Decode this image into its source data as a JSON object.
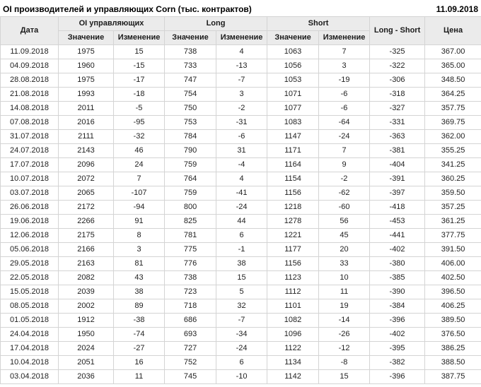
{
  "header": {
    "title": "OI производителей и управляющих Corn (тыс. контрактов)",
    "date": "11.09.2018"
  },
  "table": {
    "col_date": "Дата",
    "group_oi": "OI управляющих",
    "group_long": "Long",
    "group_short": "Short",
    "col_value": "Значение",
    "col_change": "Изменение",
    "col_long_short": "Long - Short",
    "col_price": "Цена",
    "rows": [
      {
        "date": "11.09.2018",
        "oi": 1975,
        "oi_chg": 15,
        "long": 738,
        "long_chg": 4,
        "short": 1063,
        "short_chg": 7,
        "ls": -325,
        "price": "367.00"
      },
      {
        "date": "04.09.2018",
        "oi": 1960,
        "oi_chg": -15,
        "long": 733,
        "long_chg": -13,
        "short": 1056,
        "short_chg": 3,
        "ls": -322,
        "price": "365.00"
      },
      {
        "date": "28.08.2018",
        "oi": 1975,
        "oi_chg": -17,
        "long": 747,
        "long_chg": -7,
        "short": 1053,
        "short_chg": -19,
        "ls": -306,
        "price": "348.50"
      },
      {
        "date": "21.08.2018",
        "oi": 1993,
        "oi_chg": -18,
        "long": 754,
        "long_chg": 3,
        "short": 1071,
        "short_chg": -6,
        "ls": -318,
        "price": "364.25"
      },
      {
        "date": "14.08.2018",
        "oi": 2011,
        "oi_chg": -5,
        "long": 750,
        "long_chg": -2,
        "short": 1077,
        "short_chg": -6,
        "ls": -327,
        "price": "357.75"
      },
      {
        "date": "07.08.2018",
        "oi": 2016,
        "oi_chg": -95,
        "long": 753,
        "long_chg": -31,
        "short": 1083,
        "short_chg": -64,
        "ls": -331,
        "price": "369.75"
      },
      {
        "date": "31.07.2018",
        "oi": 2111,
        "oi_chg": -32,
        "long": 784,
        "long_chg": -6,
        "short": 1147,
        "short_chg": -24,
        "ls": -363,
        "price": "362.00"
      },
      {
        "date": "24.07.2018",
        "oi": 2143,
        "oi_chg": 46,
        "long": 790,
        "long_chg": 31,
        "short": 1171,
        "short_chg": 7,
        "ls": -381,
        "price": "355.25"
      },
      {
        "date": "17.07.2018",
        "oi": 2096,
        "oi_chg": 24,
        "long": 759,
        "long_chg": -4,
        "short": 1164,
        "short_chg": 9,
        "ls": -404,
        "price": "341.25"
      },
      {
        "date": "10.07.2018",
        "oi": 2072,
        "oi_chg": 7,
        "long": 764,
        "long_chg": 4,
        "short": 1154,
        "short_chg": -2,
        "ls": -391,
        "price": "360.25"
      },
      {
        "date": "03.07.2018",
        "oi": 2065,
        "oi_chg": -107,
        "long": 759,
        "long_chg": -41,
        "short": 1156,
        "short_chg": -62,
        "ls": -397,
        "price": "359.50"
      },
      {
        "date": "26.06.2018",
        "oi": 2172,
        "oi_chg": -94,
        "long": 800,
        "long_chg": -24,
        "short": 1218,
        "short_chg": -60,
        "ls": -418,
        "price": "357.25"
      },
      {
        "date": "19.06.2018",
        "oi": 2266,
        "oi_chg": 91,
        "long": 825,
        "long_chg": 44,
        "short": 1278,
        "short_chg": 56,
        "ls": -453,
        "price": "361.25"
      },
      {
        "date": "12.06.2018",
        "oi": 2175,
        "oi_chg": 8,
        "long": 781,
        "long_chg": 6,
        "short": 1221,
        "short_chg": 45,
        "ls": -441,
        "price": "377.75"
      },
      {
        "date": "05.06.2018",
        "oi": 2166,
        "oi_chg": 3,
        "long": 775,
        "long_chg": -1,
        "short": 1177,
        "short_chg": 20,
        "ls": -402,
        "price": "391.50"
      },
      {
        "date": "29.05.2018",
        "oi": 2163,
        "oi_chg": 81,
        "long": 776,
        "long_chg": 38,
        "short": 1156,
        "short_chg": 33,
        "ls": -380,
        "price": "406.00"
      },
      {
        "date": "22.05.2018",
        "oi": 2082,
        "oi_chg": 43,
        "long": 738,
        "long_chg": 15,
        "short": 1123,
        "short_chg": 10,
        "ls": -385,
        "price": "402.50"
      },
      {
        "date": "15.05.2018",
        "oi": 2039,
        "oi_chg": 38,
        "long": 723,
        "long_chg": 5,
        "short": 1112,
        "short_chg": 11,
        "ls": -390,
        "price": "396.50"
      },
      {
        "date": "08.05.2018",
        "oi": 2002,
        "oi_chg": 89,
        "long": 718,
        "long_chg": 32,
        "short": 1101,
        "short_chg": 19,
        "ls": -384,
        "price": "406.25"
      },
      {
        "date": "01.05.2018",
        "oi": 1912,
        "oi_chg": -38,
        "long": 686,
        "long_chg": -7,
        "short": 1082,
        "short_chg": -14,
        "ls": -396,
        "price": "389.50"
      },
      {
        "date": "24.04.2018",
        "oi": 1950,
        "oi_chg": -74,
        "long": 693,
        "long_chg": -34,
        "short": 1096,
        "short_chg": -26,
        "ls": -402,
        "price": "376.50"
      },
      {
        "date": "17.04.2018",
        "oi": 2024,
        "oi_chg": -27,
        "long": 727,
        "long_chg": -24,
        "short": 1122,
        "short_chg": -12,
        "ls": -395,
        "price": "386.25"
      },
      {
        "date": "10.04.2018",
        "oi": 2051,
        "oi_chg": 16,
        "long": 752,
        "long_chg": 6,
        "short": 1134,
        "short_chg": -8,
        "ls": -382,
        "price": "388.50"
      },
      {
        "date": "03.04.2018",
        "oi": 2036,
        "oi_chg": 11,
        "long": 745,
        "long_chg": -10,
        "short": 1142,
        "short_chg": 15,
        "ls": -396,
        "price": "387.75"
      }
    ]
  },
  "colors": {
    "positive": "#008000",
    "negative": "#c00000",
    "header_bg": "#ebebeb",
    "border": "#d4d4d4"
  }
}
